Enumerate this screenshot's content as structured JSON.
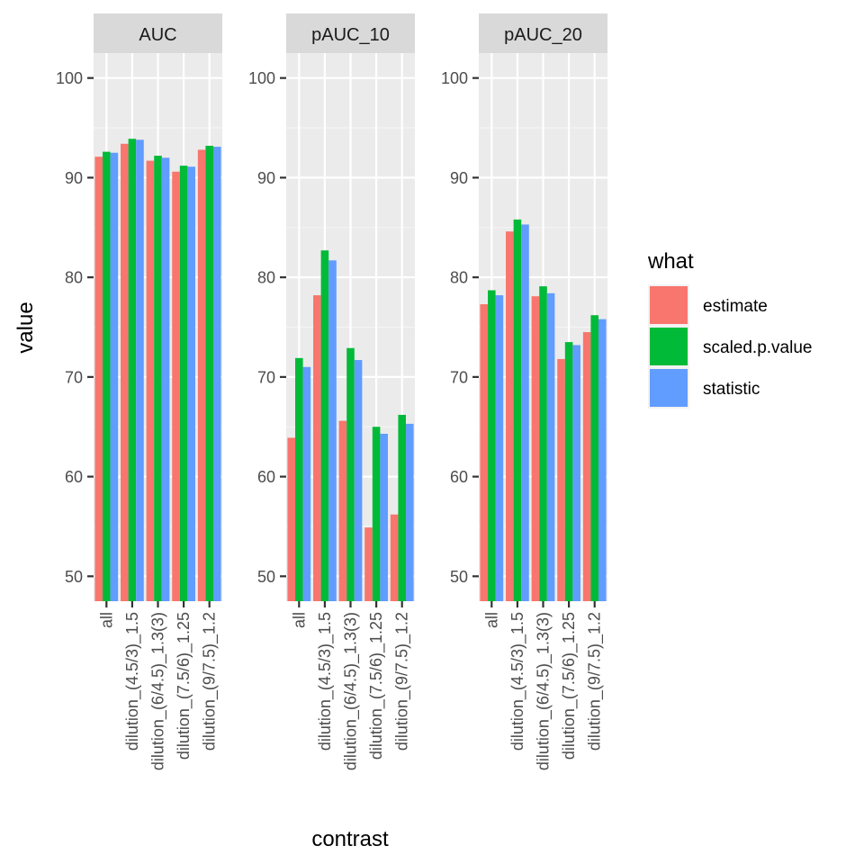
{
  "chart_data": {
    "type": "bar",
    "xlabel": "contrast",
    "ylabel": "value",
    "ylim": [
      47.5,
      102.5
    ],
    "yticks": [
      50,
      60,
      70,
      80,
      90,
      100
    ],
    "categories": [
      "all",
      "dilution_(4.5/3)_1.5",
      "dilution_(6/4.5)_1.3(3)",
      "dilution_(7.5/6)_1.25",
      "dilution_(9/7.5)_1.2"
    ],
    "legend": {
      "title": "what",
      "position": "right"
    },
    "series_names": [
      "estimate",
      "scaled.p.value",
      "statistic"
    ],
    "colors": {
      "estimate": "#F8766D",
      "scaled.p.value": "#00BA38",
      "statistic": "#619CFF"
    },
    "panels": [
      {
        "title": "AUC",
        "series": [
          {
            "name": "estimate",
            "values": [
              92.1,
              93.4,
              91.7,
              90.6,
              92.8
            ]
          },
          {
            "name": "scaled.p.value",
            "values": [
              92.6,
              93.9,
              92.2,
              91.2,
              93.2
            ]
          },
          {
            "name": "statistic",
            "values": [
              92.5,
              93.8,
              92.0,
              91.1,
              93.1
            ]
          }
        ]
      },
      {
        "title": "pAUC_10",
        "series": [
          {
            "name": "estimate",
            "values": [
              63.9,
              78.2,
              65.6,
              54.9,
              56.2
            ]
          },
          {
            "name": "scaled.p.value",
            "values": [
              71.9,
              82.7,
              72.9,
              65.0,
              66.2
            ]
          },
          {
            "name": "statistic",
            "values": [
              71.0,
              81.7,
              71.7,
              64.3,
              65.3
            ]
          }
        ]
      },
      {
        "title": "pAUC_20",
        "series": [
          {
            "name": "estimate",
            "values": [
              77.3,
              84.6,
              78.1,
              71.8,
              74.5
            ]
          },
          {
            "name": "scaled.p.value",
            "values": [
              78.7,
              85.8,
              79.1,
              73.5,
              76.2
            ]
          },
          {
            "name": "statistic",
            "values": [
              78.2,
              85.3,
              78.4,
              73.2,
              75.8
            ]
          }
        ]
      }
    ]
  }
}
